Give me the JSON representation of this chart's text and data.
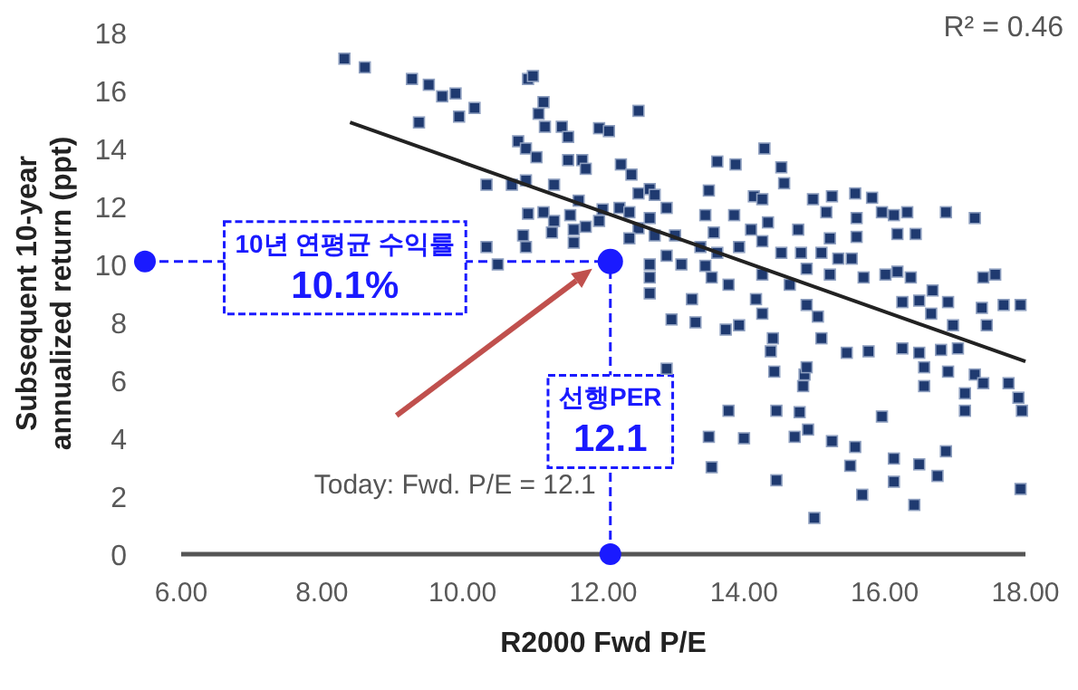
{
  "chart_data": {
    "type": "scatter",
    "xlabel": "R2000 Fwd P/E",
    "ylabel": "Subsequent 10-year annualized return (ppt)",
    "xlim": [
      6,
      18
    ],
    "xticks": [
      {
        "value": 6,
        "label": "6.00"
      },
      {
        "value": 8,
        "label": "8.00"
      },
      {
        "value": 10,
        "label": "10.00"
      },
      {
        "value": 12,
        "label": "12.00"
      },
      {
        "value": 14,
        "label": "14.00"
      },
      {
        "value": 16,
        "label": "16.00"
      },
      {
        "value": 18,
        "label": "18.00"
      }
    ],
    "ylim": [
      0,
      18
    ],
    "yticks": [
      0,
      2,
      4,
      6,
      8,
      10,
      12,
      14,
      16,
      18
    ],
    "grid": false,
    "series": [
      {
        "color": "#1f3a70",
        "marker": "square",
        "x": [
          8.32,
          8.61,
          9.28,
          9.52,
          9.71,
          9.9,
          10.17,
          9.95,
          9.38,
          10.34,
          10.7,
          10.34,
          10.5,
          10.79,
          10.9,
          10.93,
          10.86,
          10.9,
          10.93,
          11.0,
          11.15,
          11.08,
          11.17,
          11.41,
          11.5,
          11.05,
          11.94,
          12.08,
          12.5,
          11.5,
          11.7,
          11.75,
          12.25,
          12.4,
          10.9,
          11.3,
          12.5,
          12.66,
          12.73,
          11.65,
          11.15,
          11.3,
          11.53,
          11.99,
          12.23,
          12.37,
          12.9,
          12.66,
          11.75,
          11.94,
          12.5,
          11.27,
          11.58,
          11.58,
          12.37,
          12.73,
          13.02,
          13.5,
          13.62,
          13.88,
          14.29,
          14.53,
          14.57,
          14.14,
          14.26,
          14.98,
          15.25,
          15.58,
          15.82,
          15.17,
          15.6,
          15.96,
          16.13,
          16.32,
          16.87,
          17.28,
          14.77,
          15.22,
          15.6,
          16.18,
          16.44,
          13.45,
          13.57,
          13.86,
          14.1,
          14.34,
          13.38,
          13.62,
          13.93,
          14.26,
          14.53,
          14.81,
          15.1,
          12.66,
          13.11,
          12.9,
          12.66,
          12.66,
          13.45,
          13.54,
          13.78,
          14.26,
          14.65,
          14.89,
          15.22,
          15.34,
          15.53,
          15.7,
          16.01,
          16.18,
          16.37,
          16.68,
          16.9,
          16.25,
          16.49,
          16.66,
          17.4,
          17.57,
          17.38,
          17.69,
          17.93,
          17.45,
          13.26,
          14.17,
          14.26,
          14.89,
          15.05,
          12.97,
          13.31,
          13.74,
          13.93,
          14.41,
          15.1,
          16.97,
          14.38,
          14.43,
          14.86,
          14.89,
          14.84,
          15.46,
          15.77,
          16.25,
          16.49,
          16.8,
          17.04,
          16.56,
          16.9,
          16.56,
          17.28,
          17.4,
          17.14,
          17.14,
          17.76,
          17.9,
          17.95,
          12.9,
          13.78,
          14.46,
          14.79,
          13.5,
          14.0,
          14.72,
          14.91,
          15.25,
          15.58,
          15.51,
          15.96,
          16.13,
          16.13,
          16.49,
          16.87,
          16.75,
          13.54,
          14.46,
          15.68,
          16.42,
          15.0,
          17.93
        ],
        "values": [
          17.1,
          16.8,
          16.4,
          16.2,
          15.8,
          15.9,
          15.4,
          15.1,
          14.9,
          12.75,
          12.75,
          10.6,
          10.0,
          14.25,
          14.0,
          11.75,
          11.0,
          10.6,
          16.4,
          16.5,
          15.6,
          15.2,
          14.75,
          14.75,
          14.4,
          13.7,
          14.7,
          14.6,
          15.3,
          13.6,
          13.6,
          13.3,
          13.45,
          13.1,
          12.9,
          12.75,
          12.45,
          12.6,
          12.4,
          12.2,
          11.8,
          11.5,
          11.7,
          11.9,
          11.95,
          11.8,
          11.95,
          11.6,
          11.3,
          11.5,
          11.25,
          11.1,
          11.2,
          10.75,
          10.9,
          11.0,
          11.0,
          12.55,
          13.55,
          13.45,
          14.0,
          13.35,
          12.8,
          12.35,
          12.25,
          12.25,
          12.35,
          12.45,
          12.3,
          11.8,
          11.6,
          11.8,
          11.7,
          11.8,
          11.8,
          11.6,
          11.2,
          10.9,
          10.95,
          11.05,
          11.05,
          11.7,
          11.1,
          11.7,
          11.2,
          11.45,
          10.6,
          10.4,
          10.6,
          10.8,
          10.4,
          10.4,
          10.4,
          10.0,
          10.0,
          10.3,
          9.55,
          9.0,
          9.95,
          9.55,
          9.3,
          9.65,
          9.3,
          9.85,
          9.65,
          10.2,
          10.2,
          9.55,
          9.65,
          9.75,
          9.55,
          9.1,
          8.7,
          8.7,
          8.75,
          8.3,
          9.55,
          9.65,
          8.5,
          8.6,
          8.6,
          7.9,
          8.8,
          8.8,
          8.3,
          8.6,
          8.2,
          8.1,
          8.0,
          7.75,
          7.9,
          7.45,
          7.45,
          7.9,
          7.0,
          6.3,
          6.2,
          6.45,
          5.8,
          6.95,
          7.0,
          7.1,
          6.95,
          7.05,
          7.1,
          6.45,
          6.3,
          5.8,
          6.2,
          5.9,
          5.55,
          4.95,
          5.9,
          5.4,
          4.95,
          6.4,
          4.95,
          4.95,
          4.9,
          4.05,
          4.0,
          4.05,
          4.3,
          3.9,
          3.7,
          3.05,
          4.75,
          3.3,
          2.5,
          3.1,
          3.55,
          2.7,
          3.0,
          2.55,
          2.05,
          1.7,
          1.25,
          2.25
        ]
      },
      {
        "type": "line",
        "color": "#222222",
        "x": [
          8.4,
          18
        ],
        "values": [
          14.9,
          6.65
        ]
      }
    ],
    "ref_lines": [
      {
        "axis": "y",
        "value": 10.1,
        "label": "10년 연평균 수익률\n10.1%",
        "color": "#1a1aff",
        "line_style": "dashed"
      },
      {
        "axis": "x",
        "value": 12.1,
        "label": "선행PER\n12.1",
        "color": "#1a1aff",
        "line_style": "dashed"
      }
    ],
    "annotations": [
      "R² = 0.46",
      "Today: Fwd. P/E = 12.1"
    ]
  }
}
